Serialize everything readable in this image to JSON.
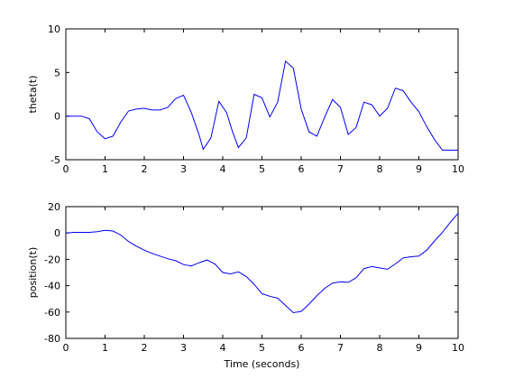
{
  "chart_data": [
    {
      "type": "line",
      "title": "",
      "xlabel": "",
      "ylabel": "theta(t)",
      "xlim": [
        0,
        10
      ],
      "ylim": [
        -5,
        10
      ],
      "xticks": [
        "0",
        "1",
        "2",
        "3",
        "4",
        "5",
        "6",
        "7",
        "8",
        "9",
        "10"
      ],
      "yticks": [
        "-5",
        "0",
        "5",
        "10"
      ],
      "grid": false,
      "line_color": "#0000ff",
      "x": [
        0,
        0.2,
        0.4,
        0.6,
        0.8,
        1.0,
        1.2,
        1.4,
        1.6,
        1.8,
        2.0,
        2.2,
        2.4,
        2.6,
        2.8,
        3.0,
        3.2,
        3.4,
        3.5,
        3.7,
        3.9,
        4.1,
        4.25,
        4.4,
        4.6,
        4.8,
        5.0,
        5.2,
        5.4,
        5.6,
        5.8,
        6.0,
        6.2,
        6.4,
        6.6,
        6.8,
        7.0,
        7.2,
        7.4,
        7.6,
        7.8,
        8.0,
        8.2,
        8.4,
        8.6,
        8.8,
        9.0,
        9.2,
        9.4,
        9.6,
        9.8,
        10.0
      ],
      "y": [
        0.0,
        0.0,
        0.0,
        -0.3,
        -1.8,
        -2.6,
        -2.3,
        -0.7,
        0.6,
        0.8,
        0.9,
        0.7,
        0.7,
        1.0,
        2.0,
        2.4,
        0.4,
        -2.2,
        -3.8,
        -2.5,
        1.7,
        0.4,
        -1.8,
        -3.6,
        -2.5,
        2.5,
        2.1,
        -0.1,
        1.6,
        6.3,
        5.5,
        0.8,
        -1.8,
        -2.3,
        -0.1,
        1.9,
        1.0,
        -2.1,
        -1.3,
        1.6,
        1.3,
        0.0,
        0.9,
        3.2,
        2.9,
        1.6,
        0.5,
        -1.2,
        -2.7,
        -3.9,
        -3.9,
        -3.9
      ]
    },
    {
      "type": "line",
      "title": "",
      "xlabel": "Time (seconds)",
      "ylabel": "position(t)",
      "xlim": [
        0,
        10
      ],
      "ylim": [
        -80,
        20
      ],
      "xticks": [
        "0",
        "1",
        "2",
        "3",
        "4",
        "5",
        "6",
        "7",
        "8",
        "9",
        "10"
      ],
      "yticks": [
        "-80",
        "-60",
        "-40",
        "-20",
        "0",
        "20"
      ],
      "grid": false,
      "line_color": "#0000ff",
      "x": [
        0,
        0.2,
        0.4,
        0.6,
        0.8,
        1.0,
        1.2,
        1.4,
        1.6,
        1.8,
        2.0,
        2.2,
        2.4,
        2.6,
        2.8,
        3.0,
        3.2,
        3.4,
        3.6,
        3.8,
        4.0,
        4.2,
        4.4,
        4.6,
        4.8,
        5.0,
        5.2,
        5.4,
        5.6,
        5.8,
        6.0,
        6.2,
        6.4,
        6.6,
        6.8,
        7.0,
        7.2,
        7.4,
        7.6,
        7.8,
        8.0,
        8.2,
        8.4,
        8.6,
        8.8,
        9.0,
        9.2,
        9.4,
        9.6,
        9.8,
        10.0
      ],
      "y": [
        0.0,
        0.5,
        0.5,
        0.5,
        1.0,
        2.0,
        1.5,
        -1.5,
        -6.5,
        -10.0,
        -13.0,
        -15.5,
        -17.5,
        -19.5,
        -21.0,
        -24.0,
        -25.0,
        -22.5,
        -20.5,
        -23.5,
        -30.0,
        -31.0,
        -29.5,
        -33.0,
        -39.0,
        -46.0,
        -48.0,
        -49.5,
        -55.0,
        -60.5,
        -59.5,
        -54.0,
        -47.5,
        -42.0,
        -38.0,
        -37.0,
        -37.5,
        -34.0,
        -27.0,
        -25.5,
        -26.5,
        -27.5,
        -23.5,
        -19.0,
        -18.0,
        -17.5,
        -13.0,
        -6.0,
        0.5,
        8.0,
        15.0
      ]
    }
  ]
}
